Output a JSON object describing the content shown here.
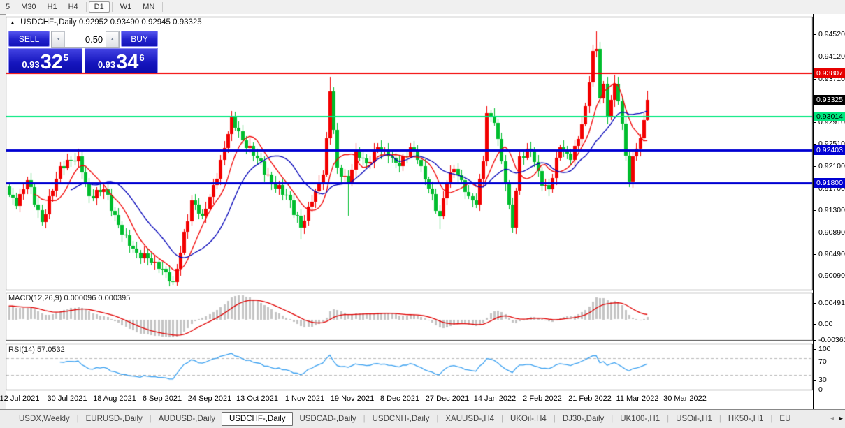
{
  "toolbar": {
    "timeframes": [
      "5",
      "M30",
      "H1",
      "H4",
      "D1",
      "W1",
      "MN"
    ],
    "active": "D1"
  },
  "chart": {
    "title": {
      "collapse_icon": "▲",
      "symbol_period": "USDCHF-,Daily",
      "ohlc": "0.92952 0.93490 0.92945 0.93325"
    },
    "trade_widget": {
      "sell_label": "SELL",
      "buy_label": "BUY",
      "volume": "0.50",
      "down_arrow": "▼",
      "up_arrow": "▲",
      "sell_small": "0.93",
      "sell_big": "32",
      "sell_sup": "5",
      "buy_small": "0.93",
      "buy_big": "34",
      "buy_sup": "6"
    },
    "price_axis": {
      "ticks": [
        "0.94520",
        "0.94120",
        "0.93710",
        "0.92910",
        "0.92510",
        "0.92100",
        "0.91700",
        "0.91300",
        "0.90890",
        "0.90490",
        "0.90090"
      ],
      "badges": [
        {
          "text": "0.93807",
          "bg": "#e60000",
          "fg": "#ffffff",
          "price": 0.93807
        },
        {
          "text": "0.93325",
          "bg": "#000000",
          "fg": "#ffffff",
          "price": 0.93325
        },
        {
          "text": "0.93014",
          "bg": "#00e87e",
          "fg": "#000000",
          "price": 0.93014
        },
        {
          "text": "0.92403",
          "bg": "#0000d2",
          "fg": "#ffffff",
          "price": 0.92403
        },
        {
          "text": "0.91800",
          "bg": "#0000d2",
          "fg": "#ffffff",
          "price": 0.918
        }
      ]
    },
    "date_axis": [
      "12 Jul 2021",
      "30 Jul 2021",
      "18 Aug 2021",
      "6 Sep 2021",
      "24 Sep 2021",
      "13 Oct 2021",
      "1 Nov 2021",
      "19 Nov 2021",
      "8 Dec 2021",
      "27 Dec 2021",
      "14 Jan 2022",
      "2 Feb 2022",
      "21 Feb 2022",
      "11 Mar 2022",
      "30 Mar 2022"
    ]
  },
  "chart_data": {
    "type": "candlestick",
    "symbol": "USDCHF-",
    "period": "Daily",
    "last_ohlc": {
      "open": 0.92952,
      "high": 0.9349,
      "low": 0.92945,
      "close": 0.93325
    },
    "bars_total": 176,
    "up_color": "#f20000",
    "down_color": "#00bd2d",
    "close_keyframes": [
      [
        0,
        0.9158
      ],
      [
        2,
        0.9138
      ],
      [
        5,
        0.9185
      ],
      [
        9,
        0.9108
      ],
      [
        14,
        0.921
      ],
      [
        19,
        0.9228
      ],
      [
        22,
        0.9155
      ],
      [
        26,
        0.9168
      ],
      [
        31,
        0.9085
      ],
      [
        35,
        0.9052
      ],
      [
        40,
        0.9035
      ],
      [
        45,
        0.8998
      ],
      [
        47,
        0.9052
      ],
      [
        50,
        0.9148
      ],
      [
        53,
        0.912
      ],
      [
        57,
        0.9188
      ],
      [
        61,
        0.9302
      ],
      [
        64,
        0.9258
      ],
      [
        68,
        0.9225
      ],
      [
        72,
        0.918
      ],
      [
        76,
        0.9158
      ],
      [
        80,
        0.9098
      ],
      [
        83,
        0.9145
      ],
      [
        86,
        0.9195
      ],
      [
        87,
        0.9262
      ],
      [
        88,
        0.9348
      ],
      [
        90,
        0.9208
      ],
      [
        93,
        0.9178
      ],
      [
        95,
        0.924
      ],
      [
        98,
        0.9215
      ],
      [
        101,
        0.9245
      ],
      [
        104,
        0.9228
      ],
      [
        107,
        0.921
      ],
      [
        110,
        0.9245
      ],
      [
        112,
        0.9222
      ],
      [
        115,
        0.917
      ],
      [
        118,
        0.9118
      ],
      [
        120,
        0.918
      ],
      [
        122,
        0.9205
      ],
      [
        124,
        0.9185
      ],
      [
        126,
        0.9155
      ],
      [
        128,
        0.914
      ],
      [
        130,
        0.922
      ],
      [
        131,
        0.9308
      ],
      [
        133,
        0.929
      ],
      [
        135,
        0.922
      ],
      [
        137,
        0.914
      ],
      [
        138,
        0.9098
      ],
      [
        140,
        0.9228
      ],
      [
        143,
        0.924
      ],
      [
        146,
        0.9175
      ],
      [
        148,
        0.9168
      ],
      [
        151,
        0.9245
      ],
      [
        154,
        0.9222
      ],
      [
        156,
        0.926
      ],
      [
        158,
        0.932
      ],
      [
        160,
        0.9422
      ],
      [
        161,
        0.9425
      ],
      [
        162,
        0.9335
      ],
      [
        163,
        0.9362
      ],
      [
        164,
        0.93
      ],
      [
        165,
        0.9332
      ],
      [
        166,
        0.9362
      ],
      [
        167,
        0.933
      ],
      [
        168,
        0.9288
      ],
      [
        169,
        0.923
      ],
      [
        170,
        0.9182
      ],
      [
        171,
        0.9228
      ],
      [
        172,
        0.9242
      ],
      [
        173,
        0.9262
      ],
      [
        174,
        0.9295
      ],
      [
        175,
        0.93325
      ]
    ],
    "spikes": [
      {
        "bar": 19,
        "high": 0.9242
      },
      {
        "bar": 45,
        "low": 0.8993
      },
      {
        "bar": 61,
        "high": 0.9312
      },
      {
        "bar": 80,
        "low": 0.9076
      },
      {
        "bar": 88,
        "high": 0.9374
      },
      {
        "bar": 93,
        "low": 0.912
      },
      {
        "bar": 118,
        "low": 0.9095
      },
      {
        "bar": 138,
        "low": 0.9089
      },
      {
        "bar": 161,
        "high": 0.9458
      },
      {
        "bar": 166,
        "high": 0.9378
      }
    ],
    "ma_fast": {
      "period": 8,
      "color": "#f20000"
    },
    "ma_slow": {
      "period": 18,
      "color": "#0000b8"
    },
    "levels": [
      {
        "price": 0.93807,
        "color": "#f20000",
        "width": 2
      },
      {
        "price": 0.93014,
        "color": "#00e87e",
        "width": 2
      },
      {
        "price": 0.92403,
        "color": "#0000d2",
        "width": 3
      },
      {
        "price": 0.918,
        "color": "#0000d2",
        "width": 3
      }
    ],
    "indicators": {
      "macd": {
        "label": "MACD(12,26,9)",
        "values": "0.000096 0.000395",
        "axis": [
          "0.004913",
          "0.00",
          "-0.003614"
        ],
        "hist_color": "#c4c4c4",
        "signal_color": "#e00000",
        "fast": 12,
        "slow": 26,
        "signal": 9
      },
      "rsi": {
        "label": "RSI(14)",
        "value": "57.0532",
        "axis": [
          "100",
          "70",
          "30",
          "0"
        ],
        "level_lines": [
          70,
          30
        ],
        "period": 14,
        "color": "#3aa0f0"
      }
    }
  },
  "tabs": {
    "items": [
      "USDX,Weekly",
      "EURUSD-,Daily",
      "AUDUSD-,Daily",
      "USDCHF-,Daily",
      "USDCAD-,Daily",
      "USDCNH-,Daily",
      "XAUUSD-,H4",
      "UKOil-,H4",
      "DJ30-,Daily",
      "UK100-,H1",
      "USOil-,H1",
      "HK50-,H1",
      "EU"
    ],
    "active_index": 3,
    "scroll_left_icon": "◂",
    "scroll_right_icon": "▸"
  }
}
